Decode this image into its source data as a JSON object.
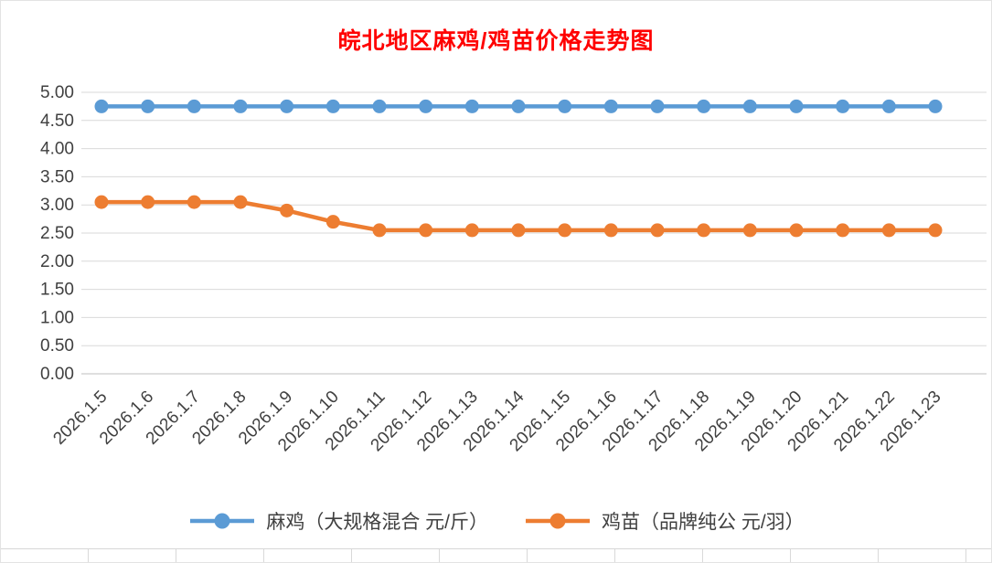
{
  "title": "皖北地区麻鸡/鸡苗价格走势图",
  "colors": {
    "title": "#FF0000",
    "series1": "#5B9BD5",
    "series2": "#ED7D31",
    "gridline": "#D9D9D9",
    "axis_line": "#BFBFBF",
    "axis_text": "#404040"
  },
  "chart_data": {
    "type": "line",
    "title": "皖北地区麻鸡/鸡苗价格走势图",
    "categories": [
      "2026.1.5",
      "2026.1.6",
      "2026.1.7",
      "2026.1.8",
      "2026.1.9",
      "2026.1.10",
      "2026.1.11",
      "2026.1.12",
      "2026.1.13",
      "2026.1.14",
      "2026.1.15",
      "2026.1.16",
      "2026.1.17",
      "2026.1.18",
      "2026.1.19",
      "2026.1.20",
      "2026.1.21",
      "2026.1.22",
      "2026.1.23"
    ],
    "series": [
      {
        "name": "麻鸡（大规格混合 元/斤）",
        "color": "#5B9BD5",
        "values": [
          4.75,
          4.75,
          4.75,
          4.75,
          4.75,
          4.75,
          4.75,
          4.75,
          4.75,
          4.75,
          4.75,
          4.75,
          4.75,
          4.75,
          4.75,
          4.75,
          4.75,
          4.75,
          4.75
        ]
      },
      {
        "name": "鸡苗（品牌纯公 元/羽）",
        "color": "#ED7D31",
        "values": [
          3.05,
          3.05,
          3.05,
          3.05,
          2.9,
          2.7,
          2.55,
          2.55,
          2.55,
          2.55,
          2.55,
          2.55,
          2.55,
          2.55,
          2.55,
          2.55,
          2.55,
          2.55,
          2.55
        ]
      }
    ],
    "xlabel": "",
    "ylabel": "",
    "ylim": [
      0,
      5
    ],
    "ytick_step": 0.5,
    "ytick_labels": [
      "0.00",
      "0.50",
      "1.00",
      "1.50",
      "2.00",
      "2.50",
      "3.00",
      "3.50",
      "4.00",
      "4.50",
      "5.00"
    ],
    "grid": true,
    "legend_position": "bottom"
  }
}
